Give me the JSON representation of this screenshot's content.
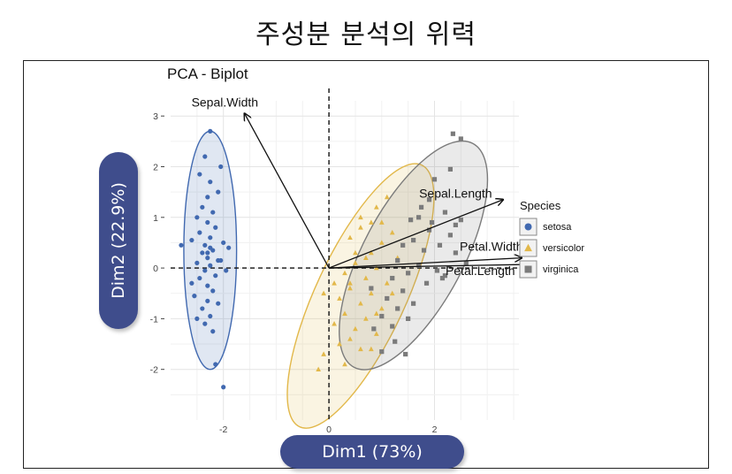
{
  "page_title": "주성분 분석의 위력",
  "chart_data": {
    "type": "scatter",
    "title": "PCA - Biplot",
    "xlabel": "Dim1 (73%)",
    "ylabel": "Dim2 (22.9%)",
    "xlim": [
      -3.0,
      3.6
    ],
    "ylim": [
      -3.0,
      3.3
    ],
    "xticks": [
      -2,
      0,
      2
    ],
    "yticks": [
      -2,
      -1,
      0,
      1,
      2,
      3
    ],
    "grid": true,
    "legend_title": "Species",
    "legend_position": "right",
    "series": [
      {
        "name": "setosa",
        "color": "#4169b0",
        "marker": "circle",
        "ellipse": {
          "cx": -2.25,
          "cy": 0.35,
          "rx": 0.5,
          "ry": 2.35,
          "angle": 0
        },
        "points": [
          [
            -2.25,
            2.7
          ],
          [
            -2.35,
            2.2
          ],
          [
            -2.05,
            2.0
          ],
          [
            -2.45,
            1.85
          ],
          [
            -2.25,
            1.7
          ],
          [
            -2.1,
            1.5
          ],
          [
            -2.3,
            1.4
          ],
          [
            -2.4,
            1.2
          ],
          [
            -2.2,
            1.1
          ],
          [
            -2.5,
            1.0
          ],
          [
            -2.3,
            0.9
          ],
          [
            -2.15,
            0.8
          ],
          [
            -2.45,
            0.7
          ],
          [
            -2.25,
            0.6
          ],
          [
            -2.0,
            0.5
          ],
          [
            -2.6,
            0.55
          ],
          [
            -2.35,
            0.45
          ],
          [
            -2.2,
            0.35
          ],
          [
            -2.4,
            0.3
          ],
          [
            -2.3,
            0.2
          ],
          [
            -2.1,
            0.15
          ],
          [
            -2.5,
            0.1
          ],
          [
            -2.25,
            0.05
          ],
          [
            -2.8,
            0.45
          ],
          [
            -1.9,
            0.4
          ],
          [
            -2.35,
            -0.05
          ],
          [
            -2.15,
            -0.15
          ],
          [
            -2.45,
            -0.2
          ],
          [
            -2.3,
            -0.35
          ],
          [
            -2.2,
            -0.45
          ],
          [
            -2.55,
            -0.55
          ],
          [
            -2.3,
            -0.65
          ],
          [
            -2.1,
            -0.7
          ],
          [
            -2.4,
            -0.8
          ],
          [
            -2.25,
            -0.95
          ],
          [
            -2.35,
            -1.1
          ],
          [
            -2.2,
            -1.25
          ],
          [
            -2.5,
            -1.0
          ],
          [
            -2.3,
            0.3
          ],
          [
            -2.25,
            0.4
          ],
          [
            -2.05,
            0.15
          ],
          [
            -1.95,
            -0.05
          ],
          [
            -2.6,
            -0.3
          ],
          [
            -2.15,
            -1.9
          ],
          [
            -2.0,
            -2.35
          ]
        ]
      },
      {
        "name": "versicolor",
        "color": "#e2b84a",
        "marker": "triangle",
        "ellipse": {
          "cx": 0.6,
          "cy": -0.55,
          "rx": 0.85,
          "ry": 2.85,
          "angle": 25
        },
        "points": [
          [
            1.1,
            1.4
          ],
          [
            0.9,
            1.2
          ],
          [
            0.8,
            0.9
          ],
          [
            1.2,
            0.7
          ],
          [
            0.6,
            0.8
          ],
          [
            1.0,
            0.5
          ],
          [
            0.4,
            0.6
          ],
          [
            0.8,
            0.3
          ],
          [
            1.3,
            0.2
          ],
          [
            0.5,
            0.1
          ],
          [
            0.9,
            0.0
          ],
          [
            0.3,
            -0.1
          ],
          [
            0.7,
            -0.2
          ],
          [
            1.1,
            -0.3
          ],
          [
            0.4,
            -0.4
          ],
          [
            0.8,
            -0.5
          ],
          [
            0.2,
            -0.6
          ],
          [
            0.6,
            -0.7
          ],
          [
            1.0,
            -0.8
          ],
          [
            0.3,
            -0.9
          ],
          [
            0.7,
            -1.0
          ],
          [
            0.1,
            -1.1
          ],
          [
            0.5,
            -1.2
          ],
          [
            0.9,
            -1.3
          ],
          [
            0.2,
            -1.5
          ],
          [
            0.6,
            -1.6
          ],
          [
            -0.1,
            -1.7
          ],
          [
            0.3,
            -1.9
          ],
          [
            -0.2,
            -2.0
          ],
          [
            0.4,
            -0.3
          ],
          [
            0.9,
            -0.9
          ],
          [
            0.5,
            0.3
          ],
          [
            1.2,
            -0.5
          ],
          [
            0.1,
            -0.3
          ],
          [
            0.7,
            0.2
          ],
          [
            -0.1,
            -0.5
          ],
          [
            0.8,
            -1.6
          ],
          [
            0.4,
            -1.4
          ],
          [
            1.0,
            0.9
          ],
          [
            0.6,
            1.0
          ]
        ]
      },
      {
        "name": "virginica",
        "color": "#7b7b7b",
        "marker": "square",
        "ellipse": {
          "cx": 1.6,
          "cy": 0.25,
          "rx": 0.95,
          "ry": 2.5,
          "angle": 28
        },
        "points": [
          [
            2.35,
            2.65
          ],
          [
            2.5,
            2.55
          ],
          [
            2.3,
            1.95
          ],
          [
            2.0,
            1.75
          ],
          [
            1.9,
            1.35
          ],
          [
            2.2,
            1.1
          ],
          [
            1.7,
            1.0
          ],
          [
            2.5,
            0.95
          ],
          [
            1.9,
            0.75
          ],
          [
            2.3,
            0.65
          ],
          [
            1.6,
            0.55
          ],
          [
            2.1,
            0.45
          ],
          [
            1.4,
            0.45
          ],
          [
            1.8,
            0.35
          ],
          [
            2.4,
            0.3
          ],
          [
            1.3,
            0.15
          ],
          [
            1.7,
            0.05
          ],
          [
            2.05,
            -0.05
          ],
          [
            1.5,
            -0.1
          ],
          [
            1.2,
            -0.2
          ],
          [
            1.85,
            -0.3
          ],
          [
            1.4,
            -0.45
          ],
          [
            1.1,
            -0.6
          ],
          [
            1.6,
            -0.7
          ],
          [
            1.3,
            -0.8
          ],
          [
            1.0,
            -0.95
          ],
          [
            1.5,
            -1.0
          ],
          [
            1.2,
            -1.15
          ],
          [
            0.85,
            -1.2
          ],
          [
            1.25,
            -1.45
          ],
          [
            1.0,
            -1.65
          ],
          [
            1.45,
            -1.7
          ],
          [
            2.2,
            -0.15
          ],
          [
            2.6,
            0.1
          ],
          [
            1.75,
            1.2
          ],
          [
            2.4,
            0.85
          ],
          [
            1.55,
            0.95
          ],
          [
            0.8,
            -0.4
          ],
          [
            1.95,
            0.9
          ],
          [
            2.15,
            -0.2
          ]
        ]
      }
    ],
    "vectors": [
      {
        "label": "Sepal.Width",
        "x": -1.6,
        "y": 3.05
      },
      {
        "label": "Sepal.Length",
        "x": 3.3,
        "y": 1.35
      },
      {
        "label": "Petal.Width",
        "x": 3.65,
        "y": 0.2
      },
      {
        "label": "Petal.Length",
        "x": 3.75,
        "y": 0.07
      }
    ]
  }
}
